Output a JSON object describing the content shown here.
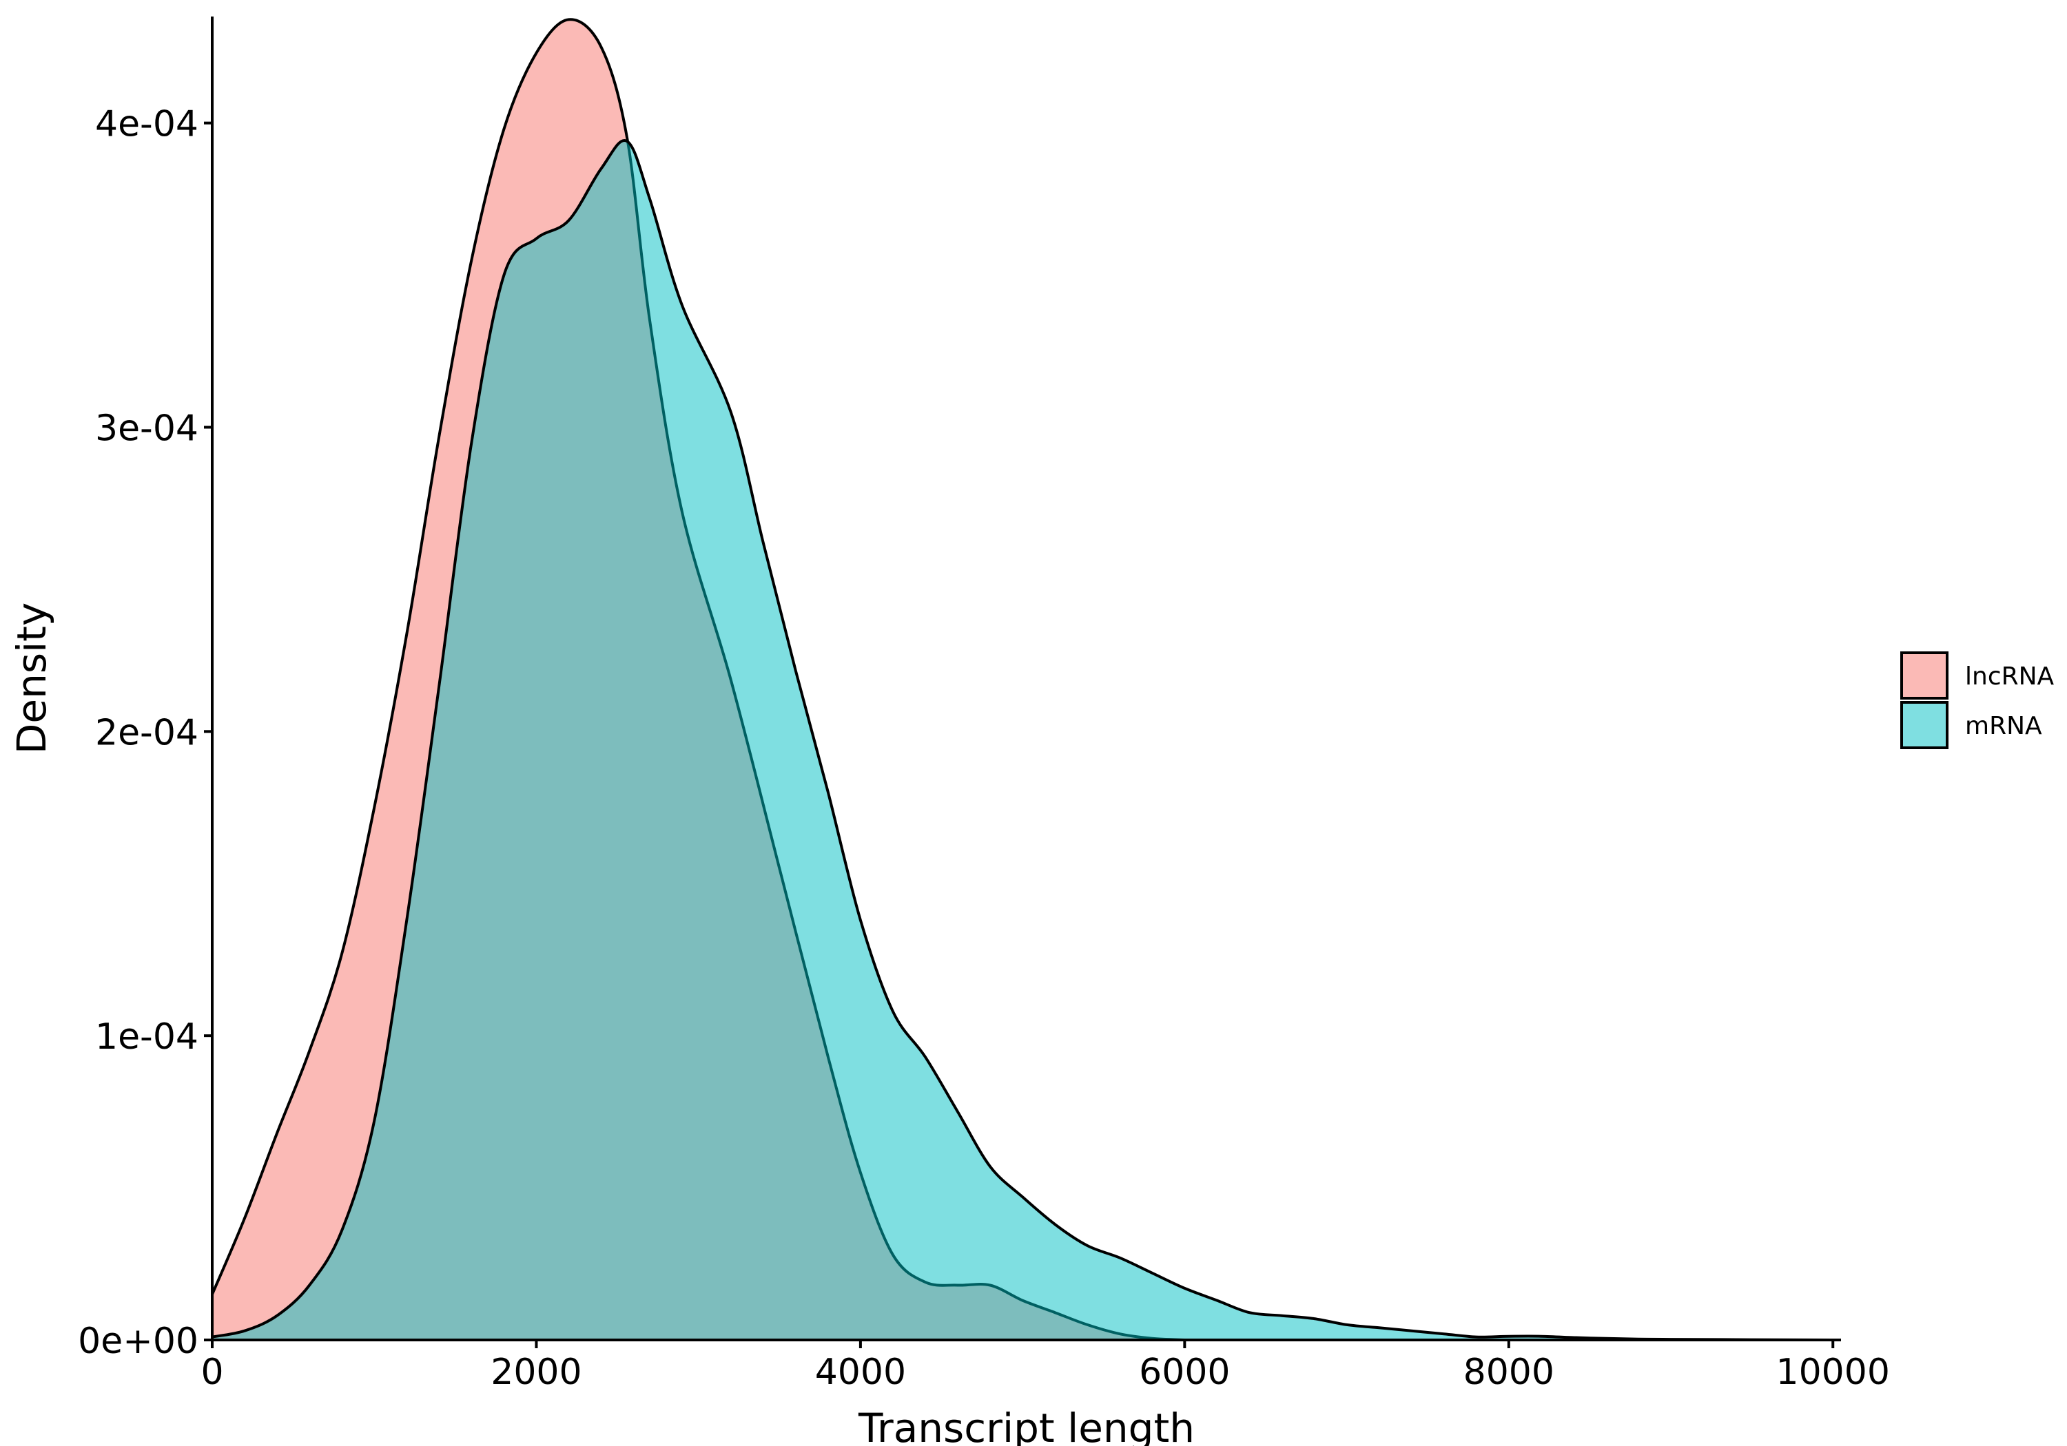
{
  "chart_data": {
    "type": "area",
    "xlabel": "Transcript length",
    "ylabel": "Density",
    "xlim": [
      0,
      10050
    ],
    "ylim": [
      0,
      0.000435
    ],
    "x_ticks": [
      0,
      2000,
      4000,
      6000,
      8000,
      10000
    ],
    "x_tick_labels": [
      "0",
      "2000",
      "4000",
      "6000",
      "8000",
      "10000"
    ],
    "y_ticks": [
      0,
      0.0001,
      0.0002,
      0.0003,
      0.0004
    ],
    "y_tick_labels": [
      "0e+00",
      "1e-04",
      "2e-04",
      "3e-04",
      "4e-04"
    ],
    "grid": false,
    "legend_position": "right",
    "series": [
      {
        "name": "lncRNA",
        "color": "#F8766D",
        "opacity": 0.5,
        "points": [
          [
            0,
            1.5e-05
          ],
          [
            200,
            4e-05
          ],
          [
            400,
            6.8e-05
          ],
          [
            600,
            9.5e-05
          ],
          [
            800,
            0.000127
          ],
          [
            1000,
            0.000175
          ],
          [
            1200,
            0.000232
          ],
          [
            1400,
            0.000297
          ],
          [
            1600,
            0.000355
          ],
          [
            1800,
            0.000398
          ],
          [
            2000,
            0.000423
          ],
          [
            2200,
            0.000434
          ],
          [
            2400,
            0.000425
          ],
          [
            2560,
            0.000395
          ],
          [
            2700,
            0.000335
          ],
          [
            2900,
            0.000272
          ],
          [
            3200,
            0.000217
          ],
          [
            3500,
            0.000155
          ],
          [
            3800,
            9.3e-05
          ],
          [
            4000,
            5.5e-05
          ],
          [
            4200,
            2.8e-05
          ],
          [
            4400,
            1.9e-05
          ],
          [
            4600,
            1.8e-05
          ],
          [
            4800,
            1.8e-05
          ],
          [
            5000,
            1.3e-05
          ],
          [
            5200,
            9e-06
          ],
          [
            5400,
            5e-06
          ],
          [
            5600,
            2e-06
          ],
          [
            5800,
            5e-07
          ],
          [
            6000,
            0
          ]
        ]
      },
      {
        "name": "mRNA",
        "color": "#00BFC4",
        "opacity": 0.5,
        "points": [
          [
            0,
            1e-06
          ],
          [
            200,
            3e-06
          ],
          [
            400,
            8e-06
          ],
          [
            600,
            1.8e-05
          ],
          [
            800,
            3.6e-05
          ],
          [
            1000,
            7.2e-05
          ],
          [
            1200,
            0.000138
          ],
          [
            1400,
            0.000215
          ],
          [
            1600,
            0.000295
          ],
          [
            1800,
            0.00035
          ],
          [
            2000,
            0.000362
          ],
          [
            2200,
            0.000368
          ],
          [
            2400,
            0.000385
          ],
          [
            2560,
            0.000394
          ],
          [
            2700,
            0.000375
          ],
          [
            2900,
            0.00034
          ],
          [
            3200,
            0.000305
          ],
          [
            3400,
            0.000262
          ],
          [
            3600,
            0.00022
          ],
          [
            3800,
            0.00018
          ],
          [
            4000,
            0.000138
          ],
          [
            4200,
            0.000108
          ],
          [
            4400,
            9.3e-05
          ],
          [
            4600,
            7.5e-05
          ],
          [
            4800,
            5.7e-05
          ],
          [
            5000,
            4.7e-05
          ],
          [
            5200,
            3.8e-05
          ],
          [
            5400,
            3.1e-05
          ],
          [
            5600,
            2.7e-05
          ],
          [
            5800,
            2.2e-05
          ],
          [
            6000,
            1.7e-05
          ],
          [
            6200,
            1.3e-05
          ],
          [
            6400,
            9e-06
          ],
          [
            6600,
            8e-06
          ],
          [
            6800,
            7e-06
          ],
          [
            7000,
            5e-06
          ],
          [
            7200,
            4e-06
          ],
          [
            7400,
            3e-06
          ],
          [
            7600,
            2e-06
          ],
          [
            7800,
            1e-06
          ],
          [
            8000,
            1.2e-06
          ],
          [
            8200,
            1.2e-06
          ],
          [
            8400,
            8e-07
          ],
          [
            8600,
            5e-07
          ],
          [
            8800,
            3e-07
          ],
          [
            9000,
            2e-07
          ],
          [
            9500,
            1e-07
          ],
          [
            10000,
            0
          ]
        ]
      }
    ]
  }
}
